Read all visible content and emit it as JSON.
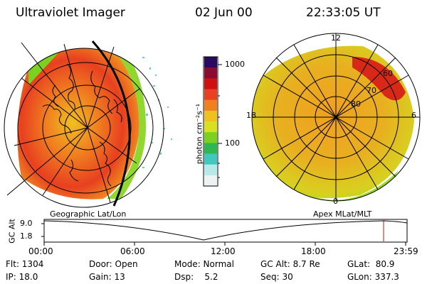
{
  "header": {
    "title": "Ultraviolet Imager",
    "date": "02 Jun 00",
    "time": "22:33:05 UT"
  },
  "left_map": {
    "caption": "Geographic Lat/Lon"
  },
  "right_map": {
    "caption": "Apex MLat/MLT",
    "mlt_labels": {
      "top": "12",
      "left": "18",
      "right": "6",
      "bottom": "0"
    },
    "lat_labels": [
      "60",
      "70",
      "80"
    ]
  },
  "colorbar": {
    "label": "photon cm⁻²s⁻¹",
    "ticks": [
      "1000",
      "100"
    ],
    "colors": [
      "#eef2f2",
      "#b8e8e8",
      "#40c8c0",
      "#30b850",
      "#7cd020",
      "#d8e020",
      "#f0c020",
      "#f08020",
      "#e84020",
      "#d01010",
      "#8a0a30",
      "#2a0a60"
    ]
  },
  "altitude_plot": {
    "ylabel": "GC Alt",
    "y_ticks": [
      "9.0",
      "1.8"
    ],
    "x_ticks": [
      "00:00",
      "06:00",
      "12:00",
      "18:00",
      "23:59"
    ],
    "marker_color": "#c01010"
  },
  "info": {
    "flt": "Flt: 1304",
    "ip": "IP: 18.0",
    "door": "Door: Open",
    "gain": "Gain: 13",
    "mode": "Mode: Normal",
    "dsp": "Dsp:    5.2",
    "gc_alt": "GC Alt: 8.7 Re",
    "seq": "Seq: 30",
    "glat": "GLat:  80.9",
    "glon": "GLon: 337.3"
  }
}
